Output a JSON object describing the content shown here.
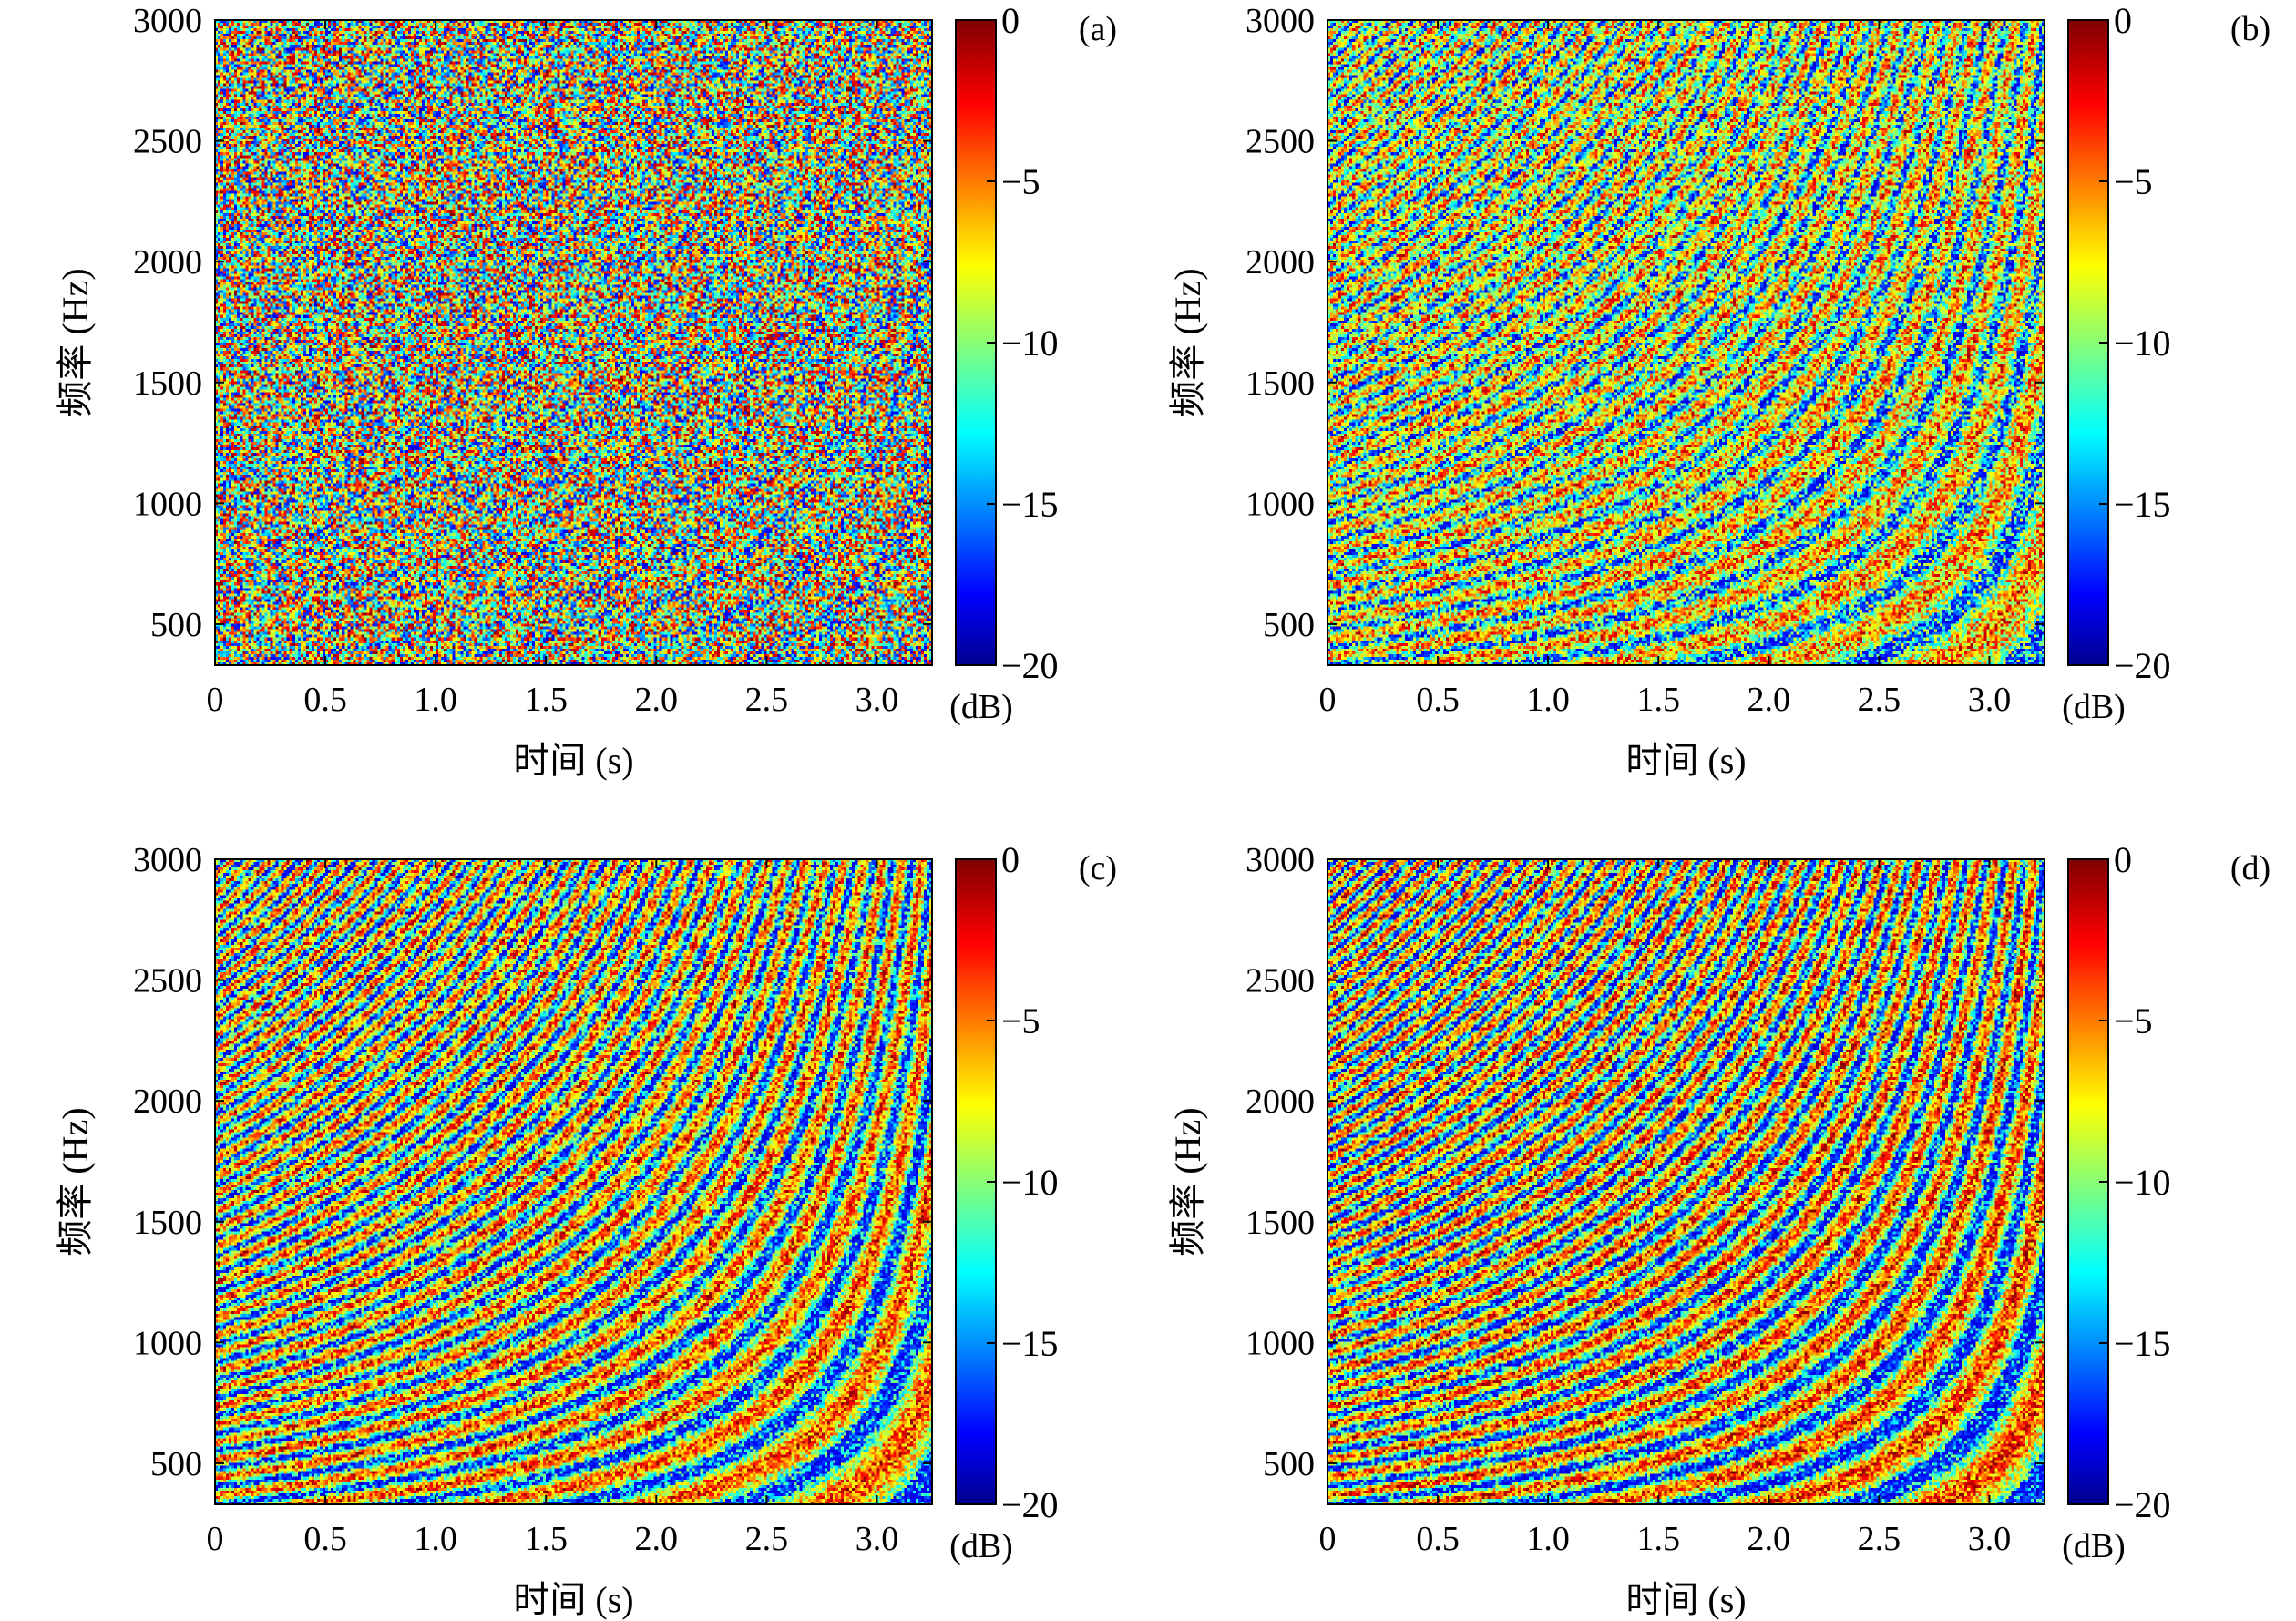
{
  "chart_data": [
    {
      "type": "heatmap",
      "panel_label": "(a)",
      "xlabel": "时间 (s)",
      "ylabel": "频率 (Hz)",
      "xlim": [
        0,
        3.25
      ],
      "ylim": [
        330,
        3000
      ],
      "x_ticks": [
        "0",
        "0.5",
        "1.0",
        "1.5",
        "2.0",
        "2.5",
        "3.0"
      ],
      "x_tick_values": [
        0,
        0.5,
        1.0,
        1.5,
        2.0,
        2.5,
        3.0
      ],
      "y_ticks": [
        "3000",
        "2500",
        "2000",
        "1500",
        "1000",
        "500"
      ],
      "y_tick_values": [
        3000,
        2500,
        2000,
        1500,
        1000,
        500
      ],
      "colorbar": {
        "ticks": [
          "0",
          "−5",
          "−10",
          "−15",
          "−20"
        ],
        "tick_values": [
          0,
          -5,
          -10,
          -15,
          -20
        ],
        "unit": "(dB)",
        "range": [
          -20,
          0
        ]
      },
      "colormap": "jet",
      "stripe_contrast": 0.12,
      "noise_level": 0.95
    },
    {
      "type": "heatmap",
      "panel_label": "(b)",
      "xlabel": "时间 (s)",
      "ylabel": "频率 (Hz)",
      "xlim": [
        0,
        3.25
      ],
      "ylim": [
        330,
        3000
      ],
      "x_ticks": [
        "0",
        "0.5",
        "1.0",
        "1.5",
        "2.0",
        "2.5",
        "3.0"
      ],
      "x_tick_values": [
        0,
        0.5,
        1.0,
        1.5,
        2.0,
        2.5,
        3.0
      ],
      "y_ticks": [
        "3000",
        "2500",
        "2000",
        "1500",
        "1000",
        "500"
      ],
      "y_tick_values": [
        3000,
        2500,
        2000,
        1500,
        1000,
        500
      ],
      "colorbar": {
        "ticks": [
          "0",
          "−5",
          "−10",
          "−15",
          "−20"
        ],
        "tick_values": [
          0,
          -5,
          -10,
          -15,
          -20
        ],
        "unit": "(dB)",
        "range": [
          -20,
          0
        ]
      },
      "colormap": "jet",
      "stripe_contrast": 0.55,
      "noise_level": 0.55
    },
    {
      "type": "heatmap",
      "panel_label": "(c)",
      "xlabel": "时间 (s)",
      "ylabel": "频率 (Hz)",
      "xlim": [
        0,
        3.25
      ],
      "ylim": [
        330,
        3000
      ],
      "x_ticks": [
        "0",
        "0.5",
        "1.0",
        "1.5",
        "2.0",
        "2.5",
        "3.0"
      ],
      "x_tick_values": [
        0,
        0.5,
        1.0,
        1.5,
        2.0,
        2.5,
        3.0
      ],
      "y_ticks": [
        "3000",
        "2500",
        "2000",
        "1500",
        "1000",
        "500"
      ],
      "y_tick_values": [
        3000,
        2500,
        2000,
        1500,
        1000,
        500
      ],
      "colorbar": {
        "ticks": [
          "0",
          "−5",
          "−10",
          "−15",
          "−20"
        ],
        "tick_values": [
          0,
          -5,
          -10,
          -15,
          -20
        ],
        "unit": "(dB)",
        "range": [
          -20,
          0
        ]
      },
      "colormap": "jet",
      "stripe_contrast": 0.8,
      "noise_level": 0.45
    },
    {
      "type": "heatmap",
      "panel_label": "(d)",
      "xlabel": "时间 (s)",
      "ylabel": "频率 (Hz)",
      "xlim": [
        0,
        3.25
      ],
      "ylim": [
        330,
        3000
      ],
      "x_ticks": [
        "0",
        "0.5",
        "1.0",
        "1.5",
        "2.0",
        "2.5",
        "3.0"
      ],
      "x_tick_values": [
        0,
        0.5,
        1.0,
        1.5,
        2.0,
        2.5,
        3.0
      ],
      "y_ticks": [
        "3000",
        "2500",
        "2000",
        "1500",
        "1000",
        "500"
      ],
      "y_tick_values": [
        3000,
        2500,
        2000,
        1500,
        1000,
        500
      ],
      "colorbar": {
        "ticks": [
          "0",
          "−5",
          "−10",
          "−15",
          "−20"
        ],
        "tick_values": [
          0,
          -5,
          -10,
          -15,
          -20
        ],
        "unit": "(dB)",
        "range": [
          -20,
          0
        ]
      },
      "colormap": "jet",
      "stripe_contrast": 0.85,
      "noise_level": 0.45
    }
  ]
}
